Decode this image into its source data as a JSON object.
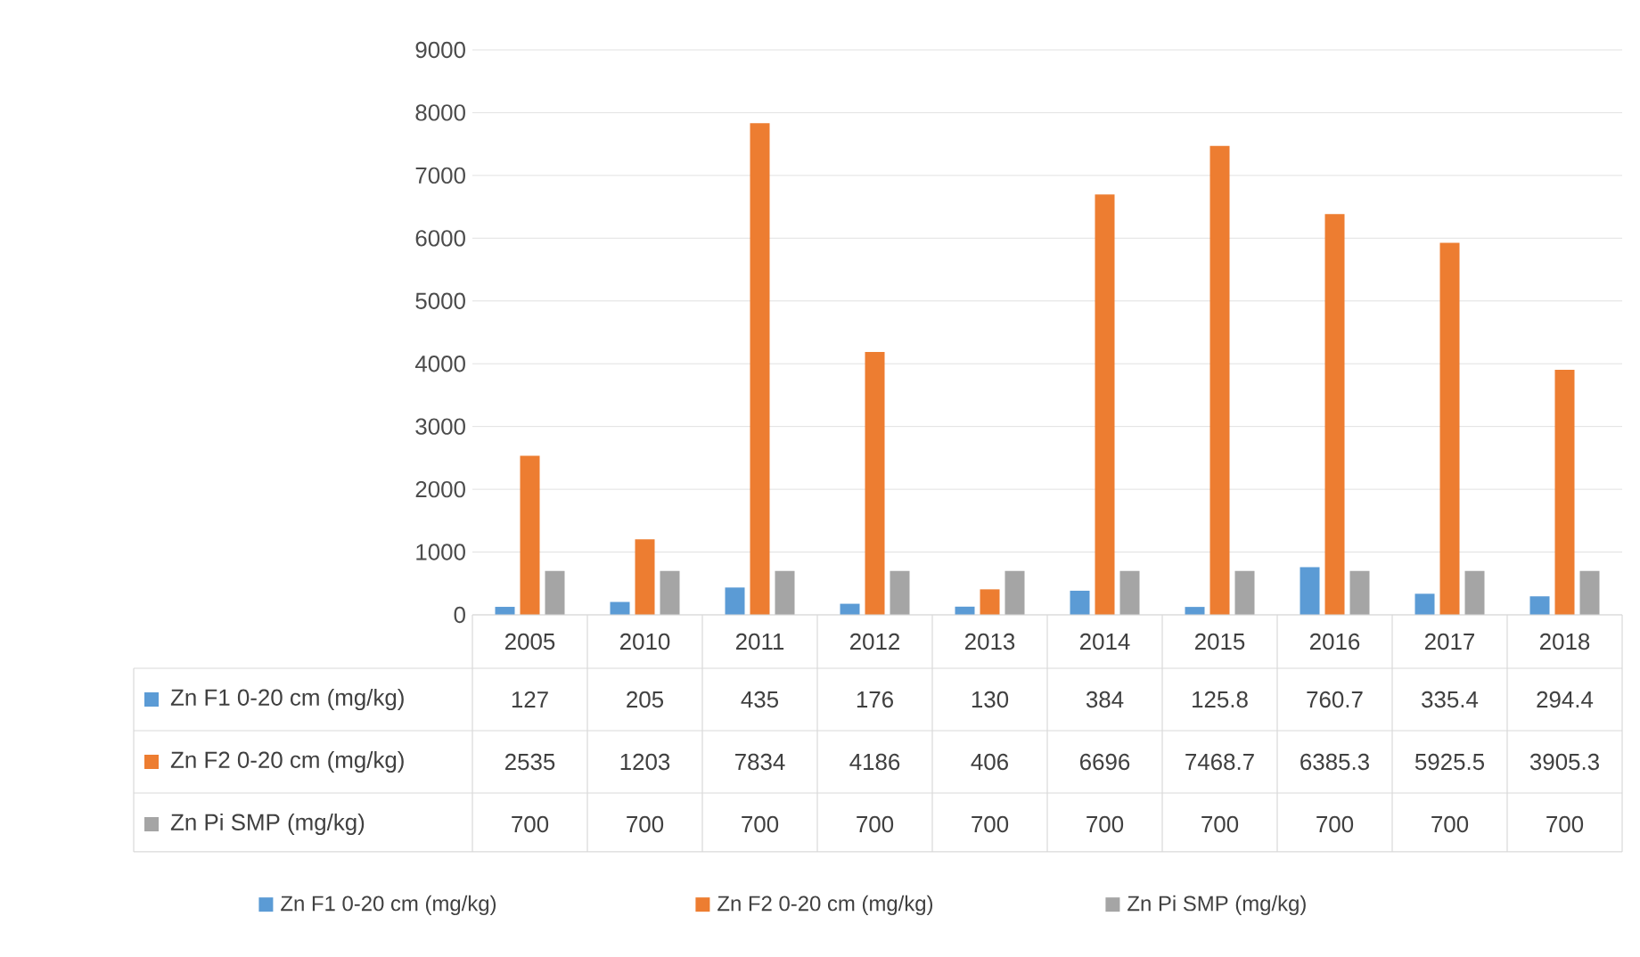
{
  "chart_data": {
    "type": "bar",
    "categories": [
      "2005",
      "2010",
      "2011",
      "2012",
      "2013",
      "2014",
      "2015",
      "2016",
      "2017",
      "2018"
    ],
    "series": [
      {
        "name": "Zn F1 0-20 cm (mg/kg)",
        "color": "#5b9bd5",
        "values": [
          127,
          205,
          435,
          176,
          130,
          384,
          125.8,
          760.7,
          335.4,
          294.4
        ]
      },
      {
        "name": "Zn F2 0-20 cm (mg/kg)",
        "color": "#ed7d31",
        "values": [
          2535,
          1203,
          7834,
          4186,
          406,
          6696,
          7468.7,
          6385.3,
          5925.5,
          3905.3
        ]
      },
      {
        "name": "Zn Pi SMP (mg/kg)",
        "color": "#a5a5a5",
        "values": [
          700,
          700,
          700,
          700,
          700,
          700,
          700,
          700,
          700,
          700
        ]
      }
    ],
    "ylim": [
      0,
      9000
    ],
    "yticks": [
      0,
      1000,
      2000,
      3000,
      4000,
      5000,
      6000,
      7000,
      8000,
      9000
    ],
    "grid": "y",
    "legend": "bottom",
    "data_labels": true
  }
}
